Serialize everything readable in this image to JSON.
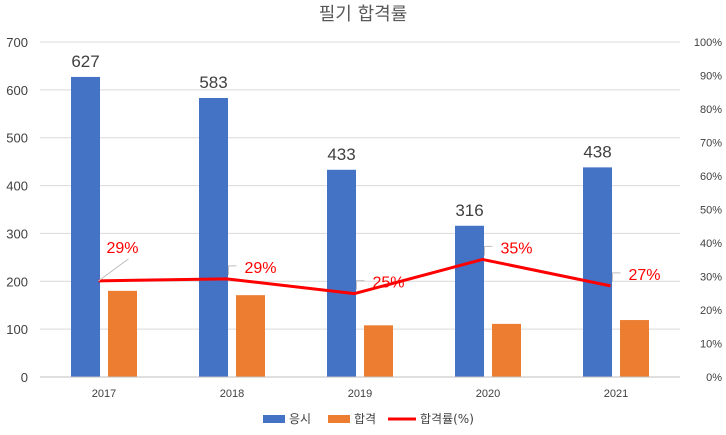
{
  "chart_data": {
    "type": "bar",
    "title": "필기 합격률",
    "categories": [
      "2017",
      "2018",
      "2019",
      "2020",
      "2021"
    ],
    "series": [
      {
        "name": "응시",
        "kind": "bar",
        "axis": "left",
        "color": "#4472c4",
        "values": [
          627,
          583,
          433,
          316,
          438
        ],
        "labels": [
          "627",
          "583",
          "433",
          "316",
          "438"
        ]
      },
      {
        "name": "합격",
        "kind": "bar",
        "axis": "left",
        "color": "#ed7d31",
        "values": [
          180,
          171,
          108,
          111,
          119
        ]
      },
      {
        "name": "합격률(%)",
        "kind": "line",
        "axis": "right",
        "color": "#ff0000",
        "values": [
          28.7,
          29.3,
          24.9,
          35.1,
          27.2
        ],
        "labels": [
          "29%",
          "29%",
          "25%",
          "35%",
          "27%"
        ]
      }
    ],
    "y_left": {
      "min": 0,
      "max": 700,
      "ticks": [
        "0",
        "100",
        "200",
        "300",
        "400",
        "500",
        "600",
        "700"
      ]
    },
    "y_right": {
      "min": 0,
      "max": 100,
      "ticks": [
        "0%",
        "10%",
        "20%",
        "30%",
        "40%",
        "50%",
        "60%",
        "70%",
        "80%",
        "90%",
        "100%"
      ]
    },
    "grid": true,
    "legend": "bottom"
  }
}
